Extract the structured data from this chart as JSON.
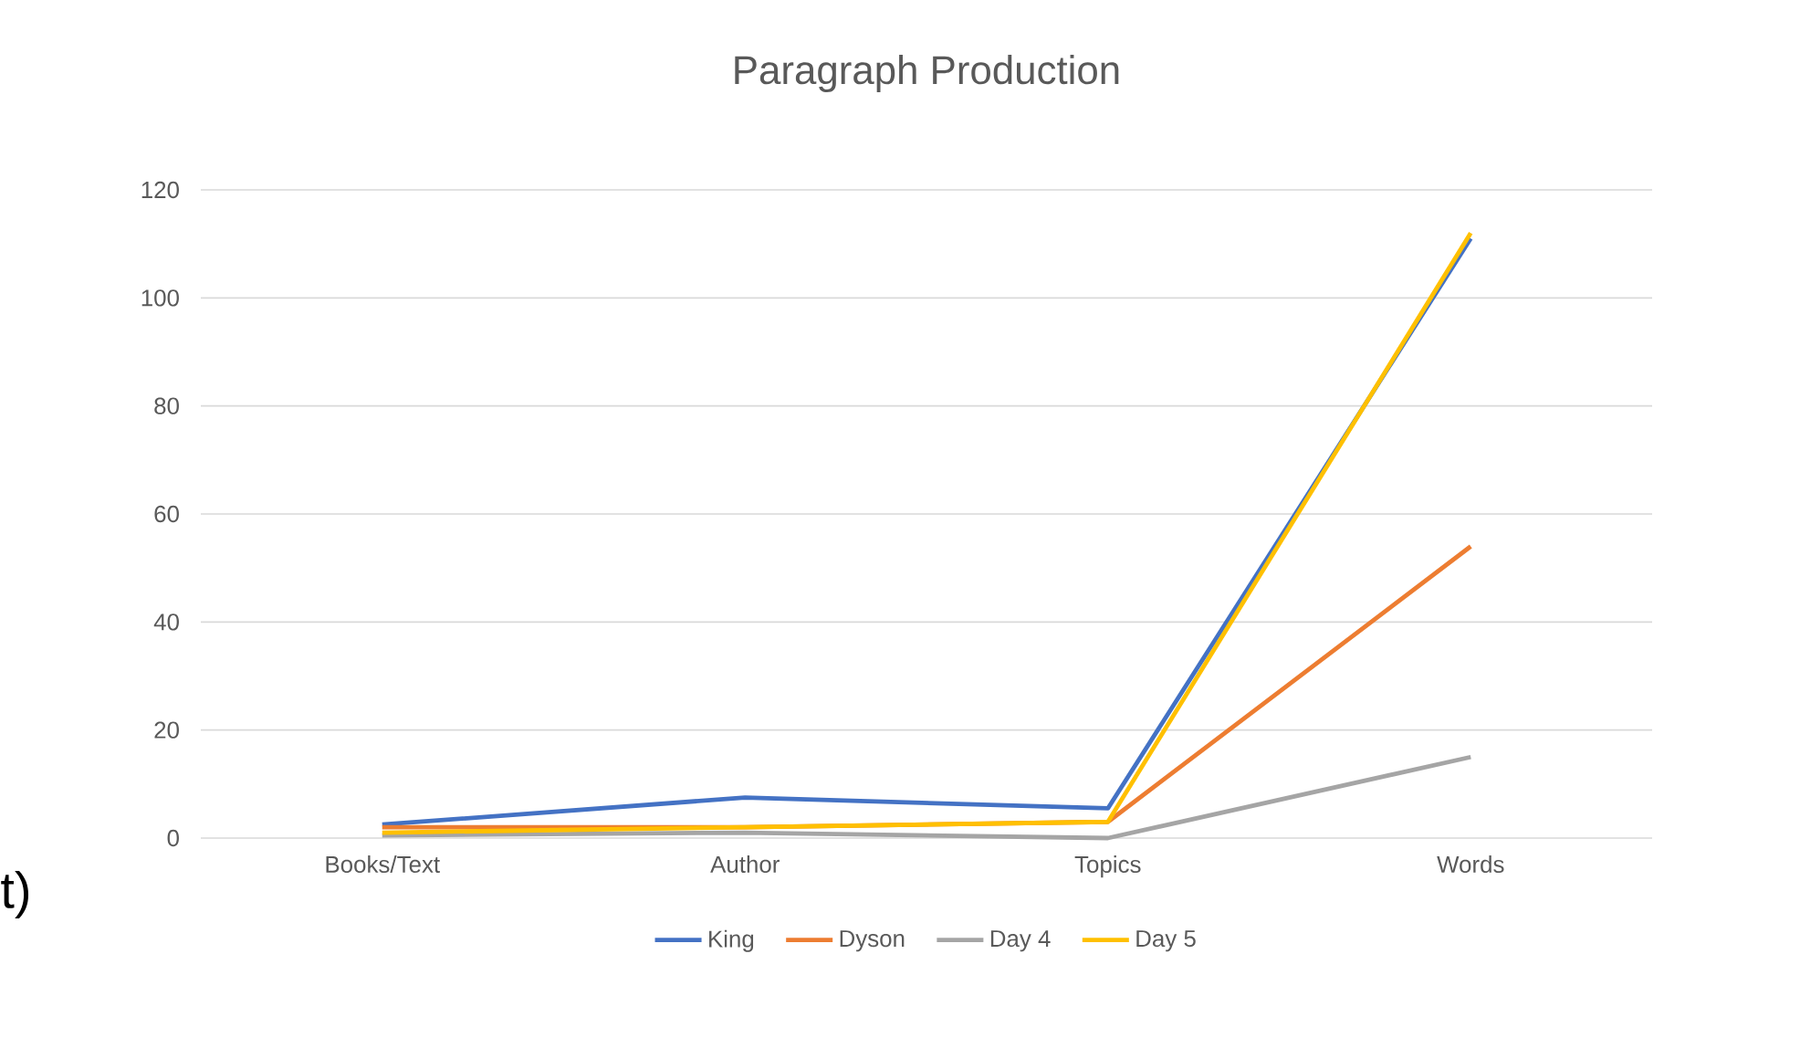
{
  "chart_data": {
    "type": "line",
    "title": "Paragraph Production",
    "categories": [
      "Books/Text",
      "Author",
      "Topics",
      "Words"
    ],
    "series": [
      {
        "name": "King",
        "color": "#4472c4",
        "values": [
          2.5,
          7.5,
          5.5,
          111
        ]
      },
      {
        "name": "Dyson",
        "color": "#ed7d31",
        "values": [
          2,
          2,
          3,
          54
        ]
      },
      {
        "name": "Day 4",
        "color": "#a5a5a5",
        "values": [
          0.5,
          1,
          0,
          15
        ]
      },
      {
        "name": "Day 5",
        "color": "#ffc000",
        "values": [
          1,
          2,
          3,
          112
        ]
      }
    ],
    "ylim": [
      0,
      120
    ],
    "yticks": [
      0,
      20,
      40,
      60,
      80,
      100,
      120
    ],
    "grid": "y",
    "legend": "bottom",
    "marker": "none",
    "line_style": "solid",
    "annotations": [
      "t)"
    ]
  }
}
